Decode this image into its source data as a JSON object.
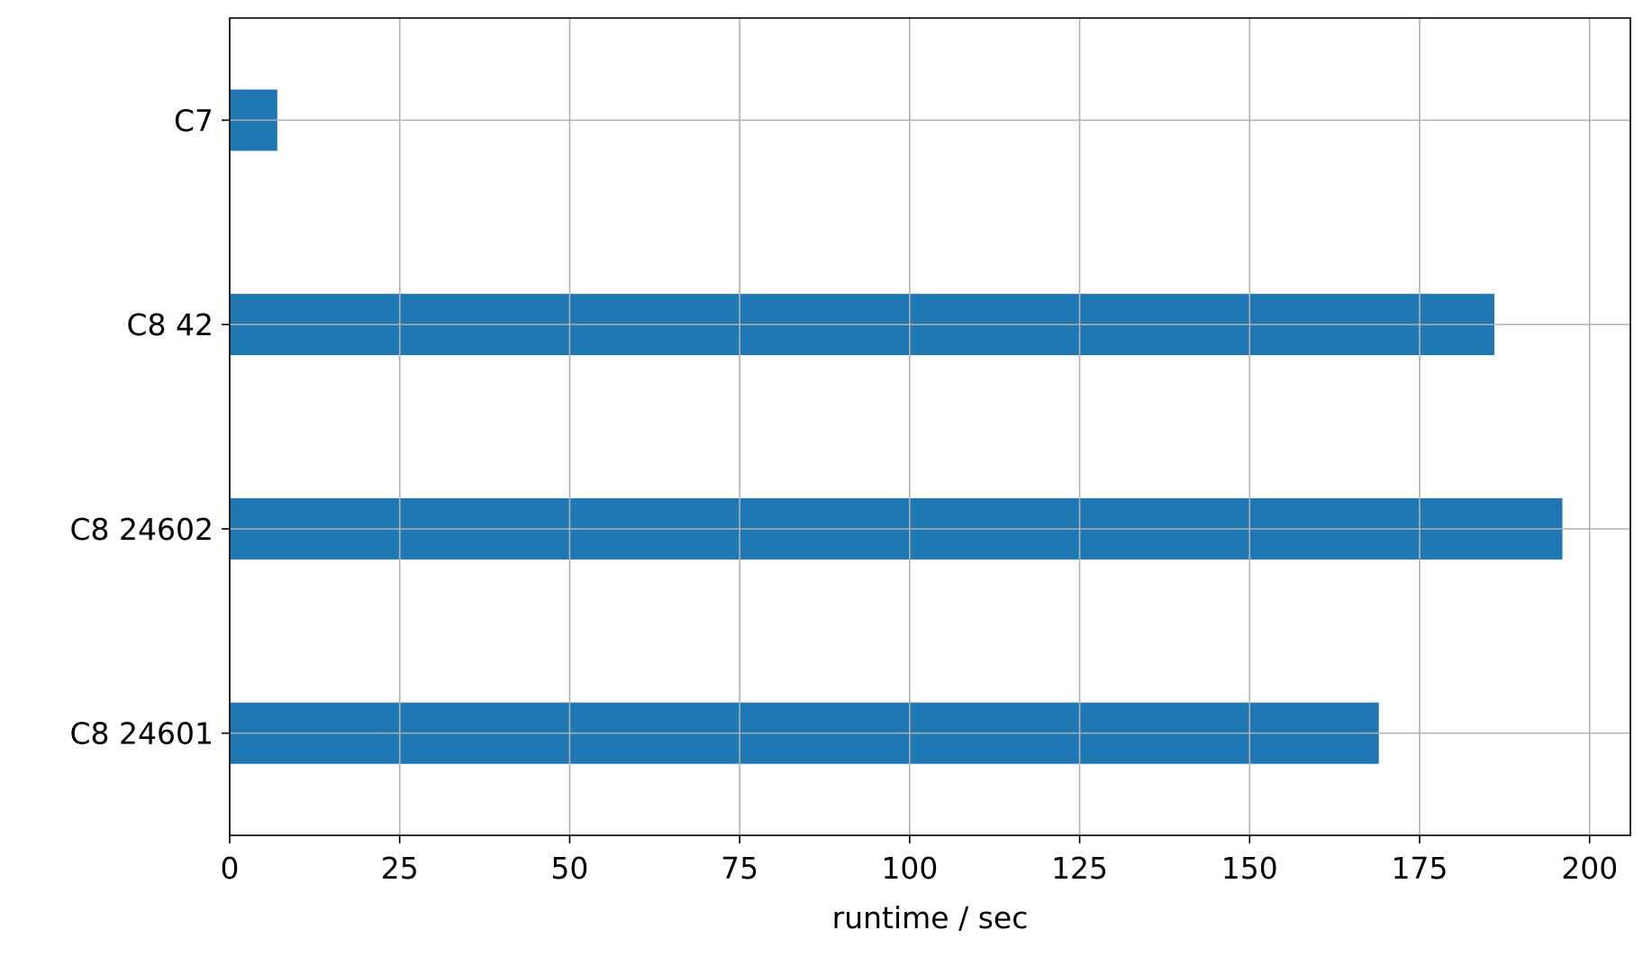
{
  "chart_data": {
    "type": "bar",
    "orientation": "horizontal",
    "categories": [
      "C7",
      "C8 42",
      "C8 24602",
      "C8 24601"
    ],
    "values": [
      7,
      186,
      196,
      169
    ],
    "title": "",
    "xlabel": "runtime / sec",
    "ylabel": "",
    "xlim": [
      0,
      206
    ],
    "xticks": [
      0,
      25,
      50,
      75,
      100,
      125,
      150,
      175,
      200
    ],
    "xtick_labels": [
      "0",
      "25",
      "50",
      "75",
      "100",
      "125",
      "150",
      "175",
      "200"
    ],
    "grid": true,
    "bar_color": "#1f77b4",
    "grid_color": "#b0b0b0"
  }
}
